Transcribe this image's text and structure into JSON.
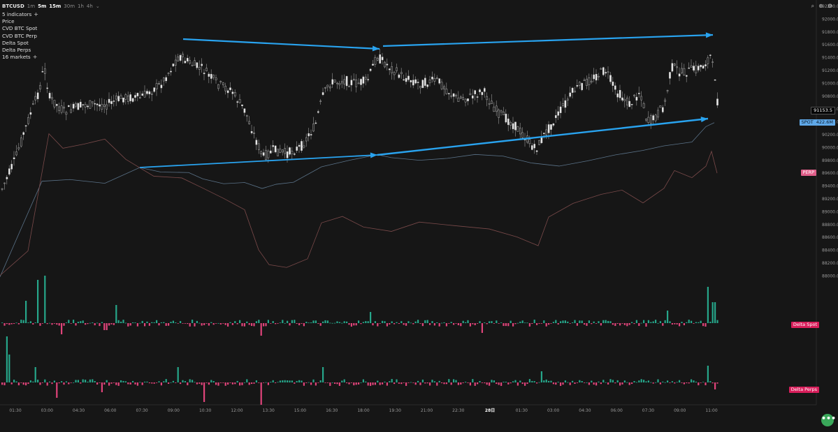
{
  "toolbar": {
    "symbol": "BTCUSD",
    "chevron": "⌄",
    "timeframes": [
      {
        "label": "1m",
        "active": false
      },
      {
        "label": "5m",
        "active": true
      },
      {
        "label": "15m",
        "active": true
      },
      {
        "label": "30m",
        "active": false
      },
      {
        "label": "1h",
        "active": false
      },
      {
        "label": "4h",
        "active": false
      }
    ]
  },
  "legend": {
    "indicators_label": "5 indicators",
    "items": [
      "Price",
      "CVD BTC Spot",
      "CVD BTC Perp",
      "Delta Spot",
      "Delta Perps"
    ],
    "markets_label": "16 markets",
    "plus": "+"
  },
  "top_icons": [
    "search-icon",
    "zoom-icon",
    "settings-icon"
  ],
  "price_axis": {
    "ticks": [
      "92200.0",
      "92000.0",
      "91800.0",
      "91600.0",
      "91400.0",
      "91200.0",
      "91000.0",
      "90800.0",
      "90600.0",
      "90400.0",
      "90200.0",
      "90000.0",
      "89800.0",
      "89600.0",
      "89400.0",
      "89200.0",
      "89000.0",
      "88800.0",
      "88600.0",
      "88400.0",
      "88200.0",
      "88000.0"
    ],
    "current_price": "91153.5",
    "spot_label": "SPOT",
    "spot_value": "422.6M",
    "perp_label": "PERP",
    "delta_spot_label": "Delta Spot",
    "delta_perps_label": "Delta Perps"
  },
  "time_axis": [
    "01:30",
    "03:00",
    "04:30",
    "06:00",
    "07:30",
    "09:00",
    "10:30",
    "12:00",
    "13:30",
    "15:00",
    "16:30",
    "18:00",
    "19:30",
    "21:00",
    "22:30",
    "28日",
    "01:30",
    "03:00",
    "04:30",
    "06:00",
    "07:30",
    "09:00",
    "11:00"
  ],
  "colors": {
    "background": "#161616",
    "candle": "#cfcfcf",
    "cvd_spot": "#5b7389",
    "cvd_perp": "#7a4a4a",
    "delta_up": "#26a68a",
    "delta_down": "#e0447a",
    "arrow": "#29a3ef",
    "spot_tag": "#5fa8e8",
    "perp_tag": "#e05f8a",
    "delta_tag": "#d81e5b",
    "current_price_tag": "#000000"
  },
  "fab_label": "•••"
}
